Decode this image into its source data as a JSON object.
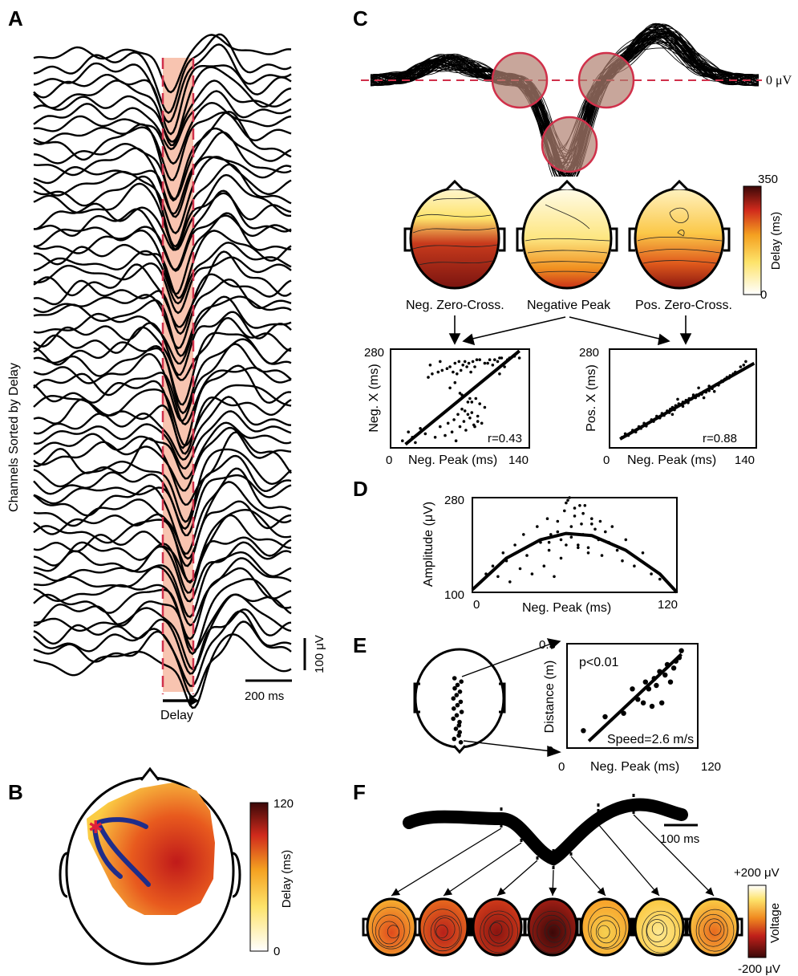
{
  "panels": {
    "a": "A",
    "b": "B",
    "c": "C",
    "d": "D",
    "e": "E",
    "f": "F"
  },
  "panel_a": {
    "ylabel": "Channels Sorted by Delay",
    "scale_uv": "100 μV",
    "scale_ms": "200 ms",
    "delay_label": "Delay",
    "highlight_color": "#f8c4b0",
    "dash_color": "#d0304a"
  },
  "panel_b": {
    "colorbar_max": "120",
    "colorbar_min": "0",
    "colorbar_label": "Delay (ms)",
    "path_color": "#1f2d8a",
    "origin_marker_color": "#e0203a"
  },
  "panel_c": {
    "zero_label": "0 μV",
    "colorbar_max": "350",
    "colorbar_min": "0",
    "colorbar_label": "Delay (ms)",
    "map_labels": [
      "Neg. Zero-Cross.",
      "Negative Peak",
      "Pos. Zero-Cross."
    ],
    "scatter_left": {
      "ylabel": "Neg. X (ms)",
      "xlabel": "Neg. Peak (ms)",
      "ymax": "280",
      "xmin": "0",
      "xmax": "140",
      "r": "r=0.43"
    },
    "scatter_right": {
      "ylabel": "Pos. X (ms)",
      "xlabel": "Neg. Peak (ms)",
      "ymax": "280",
      "xmin": "0",
      "xmax": "140",
      "r": "r=0.88"
    }
  },
  "panel_d": {
    "ylabel": "Amplitude (μV)",
    "xlabel": "Neg. Peak (ms)",
    "ymax": "280",
    "ymin": "100",
    "xmin": "0",
    "xmax": "120"
  },
  "panel_e": {
    "ylabel": "Distance (m)",
    "xlabel": "Neg. Peak (ms)",
    "ymax": "0.3",
    "ymin": "0",
    "xmin": "0",
    "xmax": "120",
    "p": "p<0.01",
    "speed": "Speed=2.6 m/s"
  },
  "panel_f": {
    "scale_ms": "100 ms",
    "colorbar_max": "+200 μV",
    "colorbar_min": "-200 μV",
    "colorbar_label": "Voltage"
  },
  "chart_data": [
    {
      "type": "scatter",
      "panel": "C-left",
      "xlabel": "Neg. Peak (ms)",
      "ylabel": "Neg. X (ms)",
      "xlim": [
        0,
        140
      ],
      "ylim": [
        0,
        280
      ],
      "annotation": "r=0.43",
      "fit_line": [
        [
          15,
          10
        ],
        [
          130,
          275
        ]
      ],
      "x": [
        12,
        18,
        22,
        25,
        30,
        35,
        38,
        42,
        45,
        48,
        50,
        52,
        55,
        57,
        58,
        60,
        62,
        63,
        64,
        65,
        66,
        67,
        68,
        69,
        70,
        71,
        72,
        73,
        74,
        75,
        76,
        77,
        78,
        79,
        80,
        81,
        82,
        83,
        84,
        85,
        86,
        87,
        88,
        90,
        92,
        95,
        98,
        100,
        103,
        105,
        108,
        110,
        112,
        115,
        118,
        120,
        125,
        130,
        60,
        70,
        80,
        90,
        65,
        75,
        85,
        95,
        72,
        78,
        82,
        88,
        40,
        50,
        110,
        115
      ],
      "y": [
        20,
        45,
        30,
        15,
        55,
        40,
        200,
        210,
        30,
        215,
        60,
        220,
        35,
        225,
        70,
        230,
        45,
        215,
        80,
        240,
        20,
        210,
        95,
        245,
        60,
        220,
        110,
        235,
        75,
        245,
        50,
        230,
        130,
        240,
        85,
        215,
        100,
        245,
        65,
        230,
        140,
        250,
        90,
        250,
        70,
        240,
        240,
        250,
        235,
        250,
        245,
        255,
        255,
        240,
        250,
        255,
        260,
        255,
        170,
        155,
        140,
        125,
        185,
        105,
        60,
        115,
        150,
        95,
        130,
        75,
        235,
        245,
        210,
        230
      ]
    },
    {
      "type": "scatter",
      "panel": "C-right",
      "xlabel": "Neg. Peak (ms)",
      "ylabel": "Pos. X (ms)",
      "xlim": [
        0,
        140
      ],
      "ylim": [
        0,
        280
      ],
      "annotation": "r=0.88",
      "fit_line": [
        [
          10,
          25
        ],
        [
          138,
          240
        ]
      ],
      "x": [
        12,
        15,
        18,
        22,
        25,
        28,
        30,
        33,
        35,
        38,
        40,
        42,
        45,
        48,
        50,
        52,
        55,
        57,
        58,
        60,
        62,
        63,
        65,
        66,
        68,
        70,
        72,
        73,
        75,
        76,
        78,
        80,
        82,
        83,
        85,
        87,
        88,
        90,
        92,
        94,
        95,
        97,
        98,
        100,
        102,
        104,
        105,
        107,
        108,
        110,
        112,
        114,
        115,
        118,
        120,
        125,
        128,
        130,
        60,
        70,
        80,
        90,
        100,
        65,
        75,
        85,
        95
      ],
      "y": [
        30,
        40,
        35,
        50,
        45,
        60,
        55,
        70,
        62,
        72,
        80,
        75,
        90,
        85,
        98,
        92,
        105,
        100,
        110,
        115,
        108,
        120,
        118,
        125,
        122,
        130,
        128,
        135,
        132,
        140,
        138,
        145,
        142,
        150,
        148,
        155,
        152,
        160,
        158,
        165,
        162,
        170,
        168,
        175,
        180,
        178,
        185,
        190,
        188,
        195,
        200,
        198,
        205,
        210,
        215,
        230,
        235,
        245,
        95,
        118,
        150,
        142,
        160,
        138,
        128,
        170,
        175
      ]
    },
    {
      "type": "scatter",
      "panel": "D",
      "xlabel": "Neg. Peak (ms)",
      "ylabel": "Amplitude (μV)",
      "xlim": [
        0,
        120
      ],
      "ylim": [
        100,
        280
      ],
      "fit_curve": "quadratic",
      "fit_points": [
        [
          0,
          105
        ],
        [
          20,
          165
        ],
        [
          40,
          200
        ],
        [
          55,
          212
        ],
        [
          70,
          208
        ],
        [
          90,
          180
        ],
        [
          110,
          135
        ],
        [
          120,
          100
        ]
      ],
      "x": [
        5,
        8,
        12,
        15,
        18,
        20,
        22,
        25,
        28,
        30,
        32,
        35,
        38,
        40,
        42,
        44,
        45,
        46,
        48,
        50,
        52,
        54,
        55,
        56,
        58,
        60,
        62,
        64,
        65,
        66,
        68,
        70,
        72,
        74,
        75,
        76,
        78,
        80,
        82,
        85,
        88,
        90,
        95,
        100,
        105,
        110,
        55,
        60,
        65,
        50,
        58,
        62,
        68,
        45,
        52,
        70,
        57,
        63
      ],
      "y": [
        120,
        135,
        150,
        130,
        175,
        160,
        120,
        190,
        145,
        210,
        170,
        135,
        225,
        195,
        150,
        240,
        180,
        210,
        130,
        235,
        200,
        255,
        190,
        275,
        225,
        245,
        190,
        230,
        210,
        265,
        185,
        240,
        220,
        200,
        235,
        170,
        215,
        195,
        225,
        180,
        160,
        200,
        150,
        175,
        135,
        125,
        270,
        260,
        250,
        215,
        205,
        185,
        175,
        195,
        165,
        230,
        280,
        265
      ]
    },
    {
      "type": "scatter",
      "panel": "E",
      "xlabel": "Neg. Peak (ms)",
      "ylabel": "Distance (m)",
      "xlim": [
        0,
        120
      ],
      "ylim": [
        0,
        0.3
      ],
      "annotations": [
        "p<0.01",
        "Speed=2.6 m/s"
      ],
      "fit_line": [
        [
          20,
          0.02
        ],
        [
          105,
          0.27
        ]
      ],
      "x": [
        15,
        35,
        52,
        60,
        65,
        70,
        72,
        75,
        78,
        80,
        82,
        85,
        87,
        90,
        92,
        95,
        98,
        100,
        103,
        105
      ],
      "y": [
        0.05,
        0.09,
        0.1,
        0.17,
        0.14,
        0.13,
        0.19,
        0.17,
        0.12,
        0.2,
        0.18,
        0.22,
        0.13,
        0.21,
        0.24,
        0.19,
        0.23,
        0.25,
        0.26,
        0.28
      ]
    }
  ]
}
